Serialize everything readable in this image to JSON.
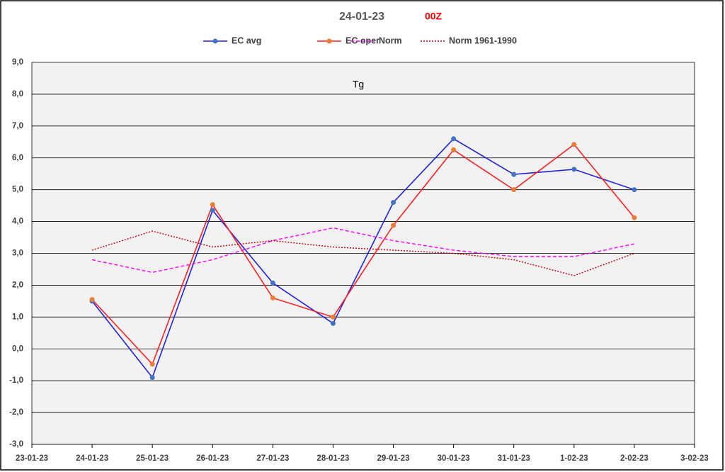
{
  "chart_data": {
    "type": "line",
    "title": "24-01-23",
    "subtitle": "00Z",
    "annotation": "Tg",
    "categories": [
      "23-01-23",
      "24-01-23",
      "25-01-23",
      "26-01-23",
      "27-01-23",
      "28-01-23",
      "29-01-23",
      "30-01-23",
      "31-01-23",
      "1-02-23",
      "2-02-23",
      "3-02-23"
    ],
    "series": [
      {
        "name": "EC avg",
        "color": "#2222dd",
        "style": "solid",
        "markers": true,
        "marker_color": "#4472c4",
        "values": [
          null,
          1.5,
          -0.9,
          4.35,
          2.07,
          0.8,
          4.6,
          6.6,
          5.48,
          5.64,
          5.0,
          null
        ]
      },
      {
        "name": "EC oper",
        "color": "#ff2020",
        "style": "solid",
        "markers": true,
        "marker_color": "#ed7d31",
        "values": [
          null,
          1.55,
          -0.48,
          4.53,
          1.6,
          1.0,
          3.88,
          6.25,
          5.0,
          6.42,
          4.12,
          null
        ]
      },
      {
        "name": "Norm",
        "color": "#ff00ff",
        "style": "dashed",
        "markers": false,
        "values": [
          null,
          2.8,
          2.4,
          2.8,
          3.4,
          3.8,
          3.4,
          3.1,
          2.9,
          2.9,
          3.3,
          null
        ]
      },
      {
        "name": "Norm 1961-1990",
        "color": "#c00000",
        "style": "dotted",
        "markers": false,
        "values": [
          null,
          3.1,
          3.7,
          3.2,
          3.4,
          3.2,
          3.1,
          3.0,
          2.8,
          2.3,
          3.0,
          null
        ]
      }
    ],
    "ylim": [
      -3,
      9
    ],
    "yticks": [
      {
        "value": -3,
        "label": "-3,0"
      },
      {
        "value": -2,
        "label": "-2,0"
      },
      {
        "value": -1,
        "label": "-1,0"
      },
      {
        "value": 0,
        "label": "0,0"
      },
      {
        "value": 1,
        "label": "1,0"
      },
      {
        "value": 2,
        "label": "2,0"
      },
      {
        "value": 3,
        "label": "3,0"
      },
      {
        "value": 4,
        "label": "4,0"
      },
      {
        "value": 5,
        "label": "5,0"
      },
      {
        "value": 6,
        "label": "6,0"
      },
      {
        "value": 7,
        "label": "7,0"
      },
      {
        "value": 8,
        "label": "8,0"
      },
      {
        "value": 9,
        "label": "9,0"
      }
    ],
    "grid": true,
    "legend": "top"
  }
}
